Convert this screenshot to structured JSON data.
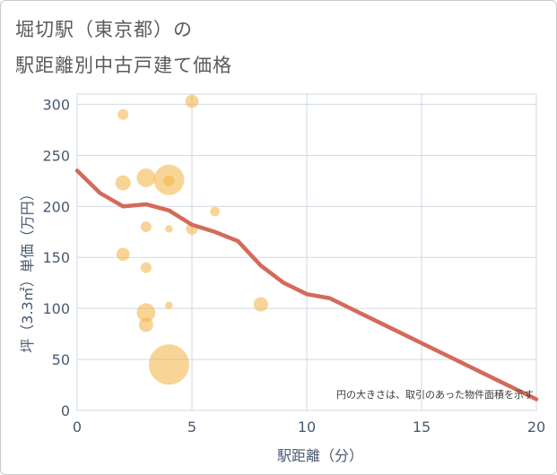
{
  "title": {
    "line1": "堀切駅（東京都）の",
    "line2": "駅距離別中古戸建て価格"
  },
  "chart_data": {
    "type": "scatter",
    "xlabel": "駅距離（分）",
    "ylabel": "坪（3.3㎡）単価（万円）",
    "xlim": [
      0,
      20
    ],
    "ylim": [
      0,
      310
    ],
    "xticks": [
      0,
      5,
      10,
      15,
      20
    ],
    "yticks": [
      0,
      50,
      100,
      150,
      200,
      250,
      300
    ],
    "grid": true,
    "annotation": "円の大きさは、取引のあった物件面積を示す",
    "colors": {
      "bubble": "#f3b23f",
      "line": "#d46a5a",
      "grid": "#cfd9e3"
    },
    "bubbles": [
      {
        "x": 2,
        "y": 290,
        "size": 1
      },
      {
        "x": 2,
        "y": 223,
        "size": 2
      },
      {
        "x": 2,
        "y": 153,
        "size": 1.5
      },
      {
        "x": 3,
        "y": 228,
        "size": 3
      },
      {
        "x": 3,
        "y": 180,
        "size": 1
      },
      {
        "x": 3,
        "y": 140,
        "size": 1
      },
      {
        "x": 3,
        "y": 96,
        "size": 3
      },
      {
        "x": 3,
        "y": 84,
        "size": 1.8
      },
      {
        "x": 4,
        "y": 226,
        "size": 8
      },
      {
        "x": 4,
        "y": 225,
        "size": 1
      },
      {
        "x": 4,
        "y": 178,
        "size": 0.5
      },
      {
        "x": 4,
        "y": 103,
        "size": 0.5
      },
      {
        "x": 4,
        "y": 45,
        "size": 14
      },
      {
        "x": 5,
        "y": 303,
        "size": 1.5
      },
      {
        "x": 5,
        "y": 178,
        "size": 1.2
      },
      {
        "x": 6,
        "y": 195,
        "size": 0.8
      },
      {
        "x": 8,
        "y": 104,
        "size": 1.8
      }
    ],
    "series": [
      {
        "name": "trend",
        "x": [
          0,
          1,
          2,
          3,
          4,
          5,
          6,
          7,
          8,
          9,
          10,
          11,
          12,
          13,
          14,
          15,
          16,
          17,
          18,
          19,
          20
        ],
        "values": [
          235,
          213,
          200,
          202,
          196,
          182,
          175,
          166,
          142,
          125,
          114,
          110,
          99,
          88,
          77,
          66,
          55,
          44,
          33,
          22,
          11
        ]
      }
    ]
  }
}
